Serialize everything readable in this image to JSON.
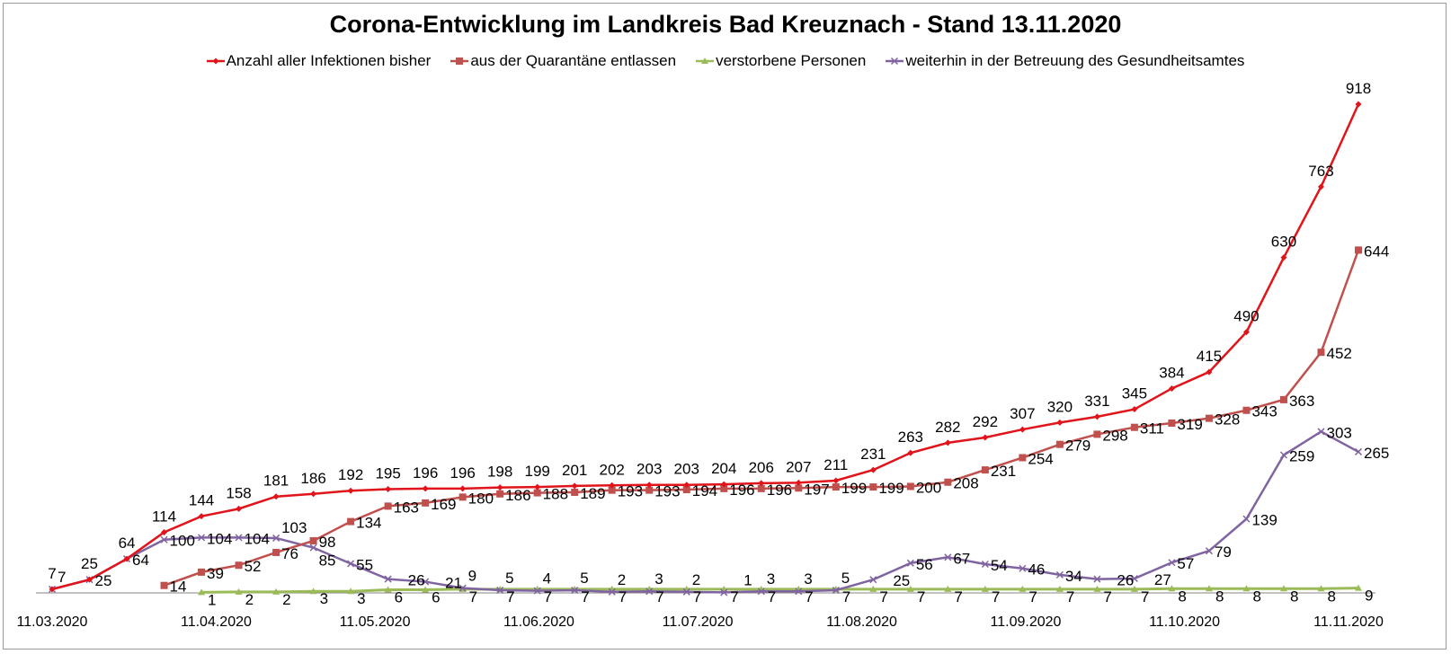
{
  "chart_data": {
    "type": "line",
    "title": "Corona-Entwicklung im Landkreis Bad Kreuznach - Stand 13.11.2020",
    "xlabel": "",
    "ylabel": "",
    "ylim": [
      0,
      918
    ],
    "grid": false,
    "legend_position": "top",
    "x_tick_labels": [
      "11.03.2020",
      "11.04.2020",
      "11.05.2020",
      "11.06.2020",
      "11.07.2020",
      "11.08.2020",
      "11.09.2020",
      "11.10.2020",
      "11.11.2020"
    ],
    "point_count": 36,
    "series": [
      {
        "name": "Anzahl aller Infektionen bisher",
        "color": "#e0141a",
        "marker": "diamond",
        "start_index": 0,
        "values": [
          7,
          25,
          64,
          114,
          144,
          158,
          181,
          186,
          192,
          195,
          196,
          196,
          198,
          199,
          201,
          202,
          203,
          203,
          204,
          206,
          207,
          211,
          231,
          263,
          282,
          292,
          307,
          320,
          331,
          345,
          384,
          415,
          490,
          630,
          763,
          918
        ]
      },
      {
        "name": "aus der Quarantäne entlassen",
        "color": "#c0504d",
        "marker": "square",
        "start_index": 3,
        "values": [
          14,
          39,
          52,
          76,
          98,
          134,
          163,
          169,
          180,
          186,
          188,
          189,
          193,
          193,
          194,
          196,
          196,
          197,
          199,
          199,
          200,
          208,
          231,
          254,
          279,
          298,
          311,
          319,
          328,
          343,
          363,
          452,
          644
        ]
      },
      {
        "name": "verstorbene Personen",
        "color": "#9bbb59",
        "marker": "triangle",
        "start_index": 4,
        "values": [
          1,
          2,
          2,
          3,
          3,
          6,
          6,
          7,
          7,
          7,
          7,
          7,
          7,
          7,
          7,
          7,
          7,
          7,
          7,
          7,
          7,
          7,
          7,
          7,
          7,
          7,
          8,
          8,
          8,
          8,
          8,
          9
        ]
      },
      {
        "name": "weiterhin in der Betreuung des Gesundheitsamtes",
        "color": "#8064a2",
        "marker": "x",
        "start_index": 0,
        "values": [
          7,
          25,
          64,
          100,
          104,
          104,
          103,
          85,
          55,
          26,
          21,
          9,
          5,
          4,
          5,
          2,
          3,
          2,
          1,
          3,
          3,
          5,
          25,
          56,
          67,
          54,
          46,
          34,
          26,
          27,
          57,
          79,
          139,
          259,
          303,
          265
        ]
      }
    ]
  }
}
